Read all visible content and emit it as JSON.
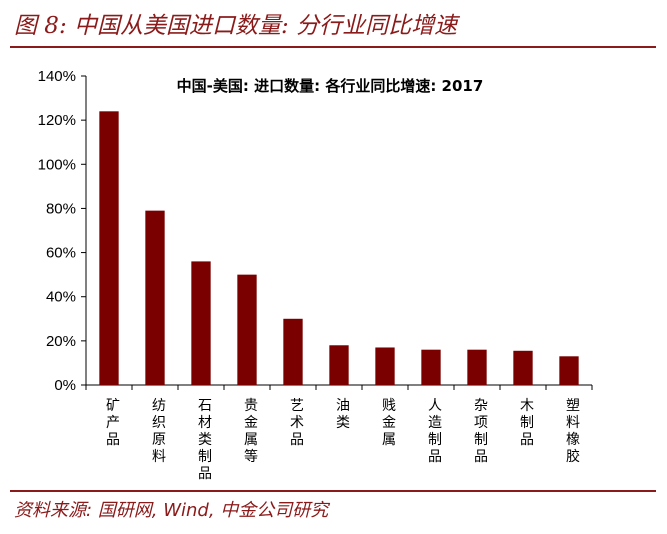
{
  "figure": {
    "title": "图 8:  中国从美国进口数量:  分行业同比增速",
    "source": "资料来源:  国研网, Wind,  中金公司研究"
  },
  "colors": {
    "accent": "#8b1a1a",
    "bar": "#7a0000"
  },
  "chart_data": {
    "type": "bar",
    "title": "中国-美国: 进口数量: 各行业同比增速: 2017",
    "xlabel": "",
    "ylabel": "",
    "categories": [
      "矿产品",
      "纺织原料",
      "石材类制品",
      "贵金属等",
      "艺术品",
      "油类",
      "贱金属",
      "人造制品",
      "杂项制品",
      "木制品",
      "塑料橡胶"
    ],
    "series": [
      {
        "values": [
          124,
          79,
          56,
          50,
          30,
          18,
          17,
          16,
          16,
          15.5,
          13
        ]
      }
    ],
    "unit": "%",
    "ylim": [
      0,
      140
    ],
    "yticks": [
      0,
      20,
      40,
      60,
      80,
      100,
      120,
      140
    ],
    "ytick_labels": [
      "0%",
      "20%",
      "40%",
      "60%",
      "80%",
      "100%",
      "120%",
      "140%"
    ],
    "grid": false,
    "legend": "none"
  }
}
